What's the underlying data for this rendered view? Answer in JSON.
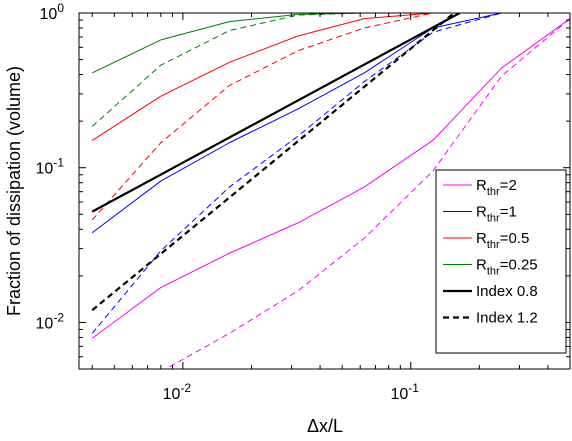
{
  "chart_data": {
    "type": "line",
    "title": "",
    "xlabel": "Δx/L",
    "ylabel": "Fraction of dissipation (volume)",
    "xscale": "log",
    "yscale": "log",
    "xlim": [
      0.0035,
      0.5
    ],
    "ylim": [
      0.005,
      1
    ],
    "grid": false,
    "legend_position": "bottom-right",
    "x_ticks": [
      {
        "value": 0.01,
        "base": "10",
        "exp": "-2"
      },
      {
        "value": 0.1,
        "base": "10",
        "exp": "-1"
      }
    ],
    "y_ticks": [
      {
        "value": 0.01,
        "base": "10",
        "exp": "-2"
      },
      {
        "value": 0.1,
        "base": "10",
        "exp": "-1"
      },
      {
        "value": 1,
        "base": "10",
        "exp": "0"
      }
    ],
    "series": [
      {
        "name": "R_thr=2",
        "label_main": "R",
        "label_sub": "thr",
        "label_tail": "=2",
        "color": "#ff00ff",
        "style": "solid",
        "width": 1,
        "x": [
          0.004,
          0.008,
          0.016,
          0.032,
          0.0625,
          0.125,
          0.25,
          0.5
        ],
        "y": [
          0.0079,
          0.0168,
          0.028,
          0.044,
          0.075,
          0.15,
          0.44,
          0.92
        ]
      },
      {
        "name": "",
        "color": "#ff00ff",
        "style": "dashed",
        "width": 1,
        "x": [
          0.008,
          0.016,
          0.032,
          0.0625,
          0.125,
          0.25,
          0.5
        ],
        "y": [
          0.0048,
          0.0085,
          0.016,
          0.035,
          0.095,
          0.39,
          0.92
        ]
      },
      {
        "name": "R_thr=1",
        "label_main": "R",
        "label_sub": "thr",
        "label_tail": "=1",
        "color": "#0000ff",
        "style": "solid",
        "width": 1,
        "x": [
          0.004,
          0.008,
          0.016,
          0.032,
          0.0625,
          0.125,
          0.25,
          0.5
        ],
        "y": [
          0.038,
          0.082,
          0.145,
          0.24,
          0.41,
          0.8,
          1,
          1
        ]
      },
      {
        "name": "",
        "color": "#0000ff",
        "style": "dashed",
        "width": 1,
        "x": [
          0.004,
          0.008,
          0.016,
          0.032,
          0.0625,
          0.125,
          0.25,
          0.5
        ],
        "y": [
          0.0085,
          0.029,
          0.075,
          0.16,
          0.36,
          0.75,
          1,
          1
        ]
      },
      {
        "name": "R_thr=0.5",
        "label_main": "R",
        "label_sub": "thr",
        "label_tail": "=0.5",
        "color": "#ff0000",
        "style": "solid",
        "width": 1,
        "x": [
          0.004,
          0.008,
          0.016,
          0.032,
          0.0625,
          0.125,
          0.25,
          0.5
        ],
        "y": [
          0.15,
          0.29,
          0.48,
          0.71,
          0.92,
          1,
          1,
          1
        ]
      },
      {
        "name": "",
        "color": "#ff0000",
        "style": "dashed",
        "width": 1,
        "x": [
          0.004,
          0.008,
          0.016,
          0.032,
          0.0625,
          0.125,
          0.25,
          0.5
        ],
        "y": [
          0.046,
          0.145,
          0.34,
          0.57,
          0.8,
          1,
          1,
          1
        ]
      },
      {
        "name": "R_thr=0.25",
        "label_main": "R",
        "label_sub": "thr",
        "label_tail": "=0.25",
        "color": "#008000",
        "style": "solid",
        "width": 1,
        "x": [
          0.004,
          0.008,
          0.016,
          0.032,
          0.0625,
          0.125,
          0.25,
          0.5
        ],
        "y": [
          0.41,
          0.67,
          0.88,
          0.98,
          1,
          1,
          1,
          1
        ]
      },
      {
        "name": "",
        "color": "#008000",
        "style": "dashed",
        "width": 1,
        "x": [
          0.004,
          0.008,
          0.016,
          0.032,
          0.0625,
          0.125,
          0.25,
          0.5
        ],
        "y": [
          0.185,
          0.46,
          0.77,
          0.97,
          1,
          1,
          1,
          1
        ]
      },
      {
        "name": "Index 0.8",
        "label_main": "Index 0.8",
        "label_sub": "",
        "label_tail": "",
        "color": "#000000",
        "style": "solid",
        "width": 2.2,
        "x": [
          0.004,
          0.164
        ],
        "y": [
          0.052,
          1
        ]
      },
      {
        "name": "Index 1.2",
        "label_main": "Index 1.2",
        "label_sub": "",
        "label_tail": "",
        "color": "#000000",
        "style": "dashed",
        "width": 2.2,
        "x": [
          0.004,
          0.155
        ],
        "y": [
          0.012,
          1
        ]
      }
    ]
  }
}
